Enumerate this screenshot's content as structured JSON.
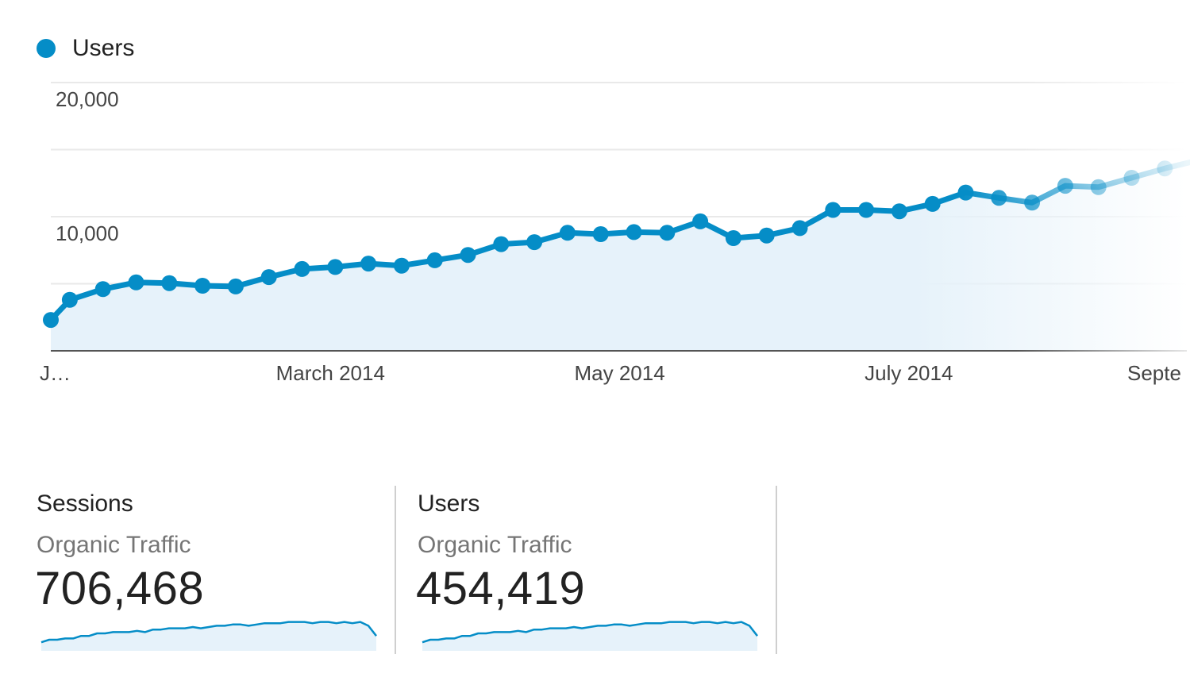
{
  "legend": {
    "label": "Users",
    "color": "#058dc7"
  },
  "chart_data": {
    "type": "line",
    "title": "",
    "xlabel": "",
    "ylabel": "",
    "ylim": [
      0,
      20000
    ],
    "y_ticks": [
      {
        "value": 20000,
        "label": "20,000"
      },
      {
        "value": 10000,
        "label": "10,000"
      }
    ],
    "x_ticks": [
      "J…",
      "March 2014",
      "May 2014",
      "July 2014",
      "Septe"
    ],
    "grid": true,
    "legend_position": "top-left",
    "series": [
      {
        "name": "Users",
        "color": "#058dc7",
        "x": [
          "2014-01-01",
          "2014-01-05",
          "2014-01-12",
          "2014-01-19",
          "2014-01-26",
          "2014-02-02",
          "2014-02-09",
          "2014-02-16",
          "2014-02-23",
          "2014-03-02",
          "2014-03-09",
          "2014-03-16",
          "2014-03-23",
          "2014-03-30",
          "2014-04-06",
          "2014-04-13",
          "2014-04-20",
          "2014-04-27",
          "2014-05-04",
          "2014-05-11",
          "2014-05-18",
          "2014-05-25",
          "2014-06-01",
          "2014-06-08",
          "2014-06-15",
          "2014-06-22",
          "2014-06-29",
          "2014-07-06",
          "2014-07-13",
          "2014-07-20",
          "2014-07-27",
          "2014-08-03",
          "2014-08-10",
          "2014-08-17",
          "2014-08-24",
          "2014-08-31"
        ],
        "values": [
          2300,
          3800,
          4600,
          5100,
          5050,
          4850,
          4800,
          5500,
          6100,
          6250,
          6500,
          6350,
          6750,
          7150,
          7950,
          8100,
          8800,
          8700,
          8850,
          8800,
          9650,
          8400,
          8600,
          9150,
          10500,
          10500,
          10400,
          10950,
          11800,
          11400,
          11050,
          12300,
          12200,
          12900,
          13600,
          14200
        ]
      }
    ]
  },
  "scorecards": [
    {
      "metric": "Sessions",
      "segment": "Organic Traffic",
      "value": "706,468",
      "trend": [
        3,
        5,
        5,
        6,
        6,
        8,
        8,
        10,
        10,
        11,
        11,
        11,
        12,
        11,
        13,
        13,
        14,
        14,
        14,
        15,
        14,
        15,
        16,
        16,
        17,
        17,
        16,
        17,
        18,
        18,
        18,
        19,
        19,
        19,
        18,
        19,
        19,
        18,
        19,
        18,
        19,
        16,
        8
      ]
    },
    {
      "metric": "Users",
      "segment": "Organic Traffic",
      "value": "454,419",
      "trend": [
        3,
        5,
        5,
        6,
        6,
        8,
        8,
        10,
        10,
        11,
        11,
        11,
        12,
        11,
        13,
        13,
        14,
        14,
        14,
        15,
        14,
        15,
        16,
        16,
        17,
        17,
        16,
        17,
        18,
        18,
        18,
        19,
        19,
        19,
        18,
        19,
        19,
        18,
        19,
        18,
        19,
        16,
        8
      ]
    }
  ]
}
